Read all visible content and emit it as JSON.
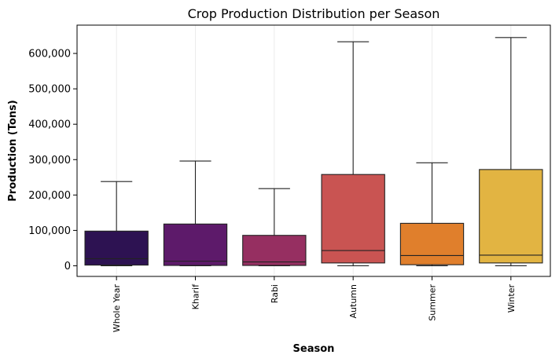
{
  "chart_data": {
    "type": "box",
    "title": "Crop Production Distribution per Season",
    "xlabel": "Season",
    "ylabel": "Production (Tons)",
    "ylim": [
      -30000,
      680000
    ],
    "yticks": [
      0,
      100000,
      200000,
      300000,
      400000,
      500000,
      600000
    ],
    "ytick_labels": [
      "0",
      "100,000",
      "200,000",
      "300,000",
      "400,000",
      "500,000",
      "600,000"
    ],
    "grid": "vertical",
    "categories": [
      "Whole Year",
      "Kharif",
      "Rabi",
      "Autumn",
      "Summer",
      "Winter"
    ],
    "boxes": [
      {
        "min": 0,
        "q1": 2000,
        "median": 20000,
        "q3": 98000,
        "max": 238000,
        "color": "#2d1252"
      },
      {
        "min": 0,
        "q1": 1000,
        "median": 13000,
        "q3": 118000,
        "max": 296000,
        "color": "#5d1a6a"
      },
      {
        "min": 0,
        "q1": 1000,
        "median": 11000,
        "q3": 86000,
        "max": 218000,
        "color": "#962f61"
      },
      {
        "min": 0,
        "q1": 8000,
        "median": 43000,
        "q3": 258000,
        "max": 633000,
        "color": "#c95452"
      },
      {
        "min": 0,
        "q1": 3000,
        "median": 29000,
        "q3": 120000,
        "max": 291000,
        "color": "#e07f2c"
      },
      {
        "min": 0,
        "q1": 8000,
        "median": 30000,
        "q3": 272000,
        "max": 645000,
        "color": "#e2b442"
      }
    ]
  }
}
